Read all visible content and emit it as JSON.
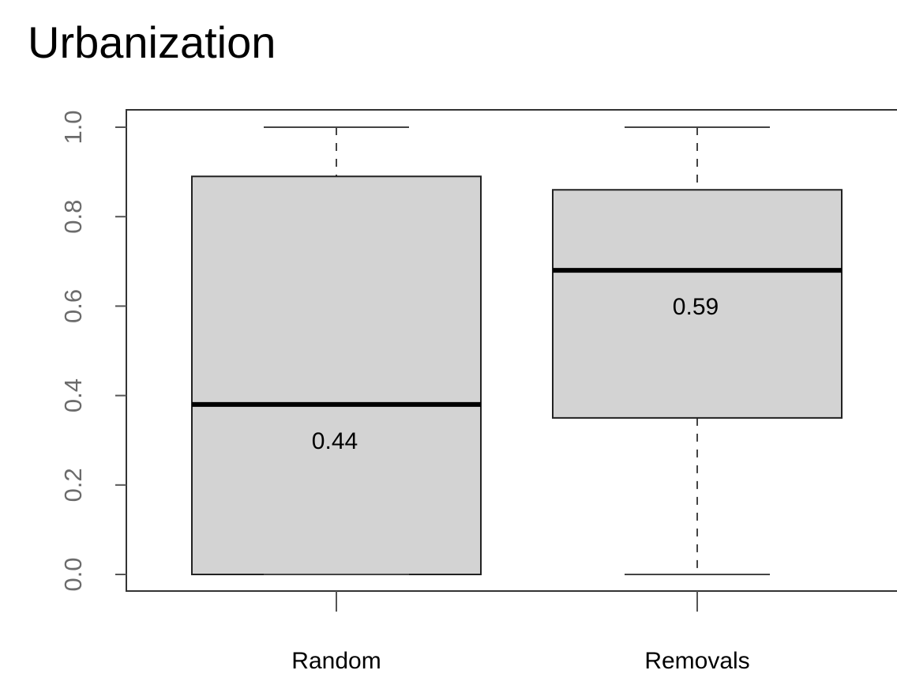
{
  "chart_data": {
    "type": "boxplot",
    "title": "Urbanization",
    "xlabel": "",
    "ylabel": "",
    "ylim": [
      -0.04,
      1.04
    ],
    "yticks": [
      "0.0",
      "0.2",
      "0.4",
      "0.6",
      "0.8",
      "1.0"
    ],
    "categories": [
      "Random",
      "Removals"
    ],
    "boxes": [
      {
        "category": "Random",
        "min": 0.0,
        "q1": 0.0,
        "median": 0.38,
        "q3": 0.89,
        "max": 1.0,
        "annotation": "0.44"
      },
      {
        "category": "Removals",
        "min": 0.0,
        "q1": 0.35,
        "median": 0.68,
        "q3": 0.86,
        "max": 1.0,
        "annotation": "0.59"
      }
    ],
    "box_fill": "#d3d3d3",
    "grid": false,
    "legend": "none"
  }
}
